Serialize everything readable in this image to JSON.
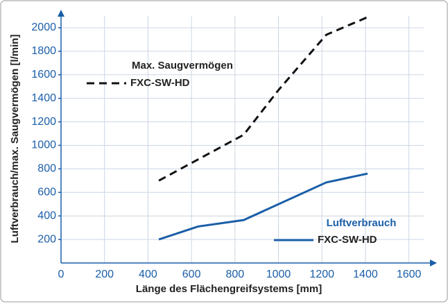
{
  "chart_data": {
    "type": "line",
    "xlabel": "Länge des Flächengreifsystems [mm]",
    "ylabel": "Luftverbrauch/max. Saugvermögen [l/min]",
    "xlim": [
      0,
      1700
    ],
    "ylim": [
      0,
      2100
    ],
    "xticks": [
      0,
      200,
      400,
      600,
      800,
      1000,
      1200,
      1400,
      1600
    ],
    "yticks": [
      200,
      400,
      600,
      800,
      1000,
      1200,
      1400,
      1600,
      1800,
      2000
    ],
    "grid": true,
    "series": [
      {
        "group": "Max. Saugvermögen",
        "name": "FXC-SW-HD",
        "color": "#111111",
        "dashed": true,
        "x": [
          450,
          840,
          1000,
          1220,
          1410
        ],
        "values": [
          700,
          1090,
          1470,
          1940,
          2090
        ]
      },
      {
        "group": "Luftverbrauch",
        "name": "FXC-SW-HD",
        "color": "#1a5ea8",
        "dashed": false,
        "x": [
          450,
          630,
          840,
          1220,
          1410
        ],
        "values": [
          200,
          310,
          365,
          685,
          760
        ]
      }
    ]
  }
}
